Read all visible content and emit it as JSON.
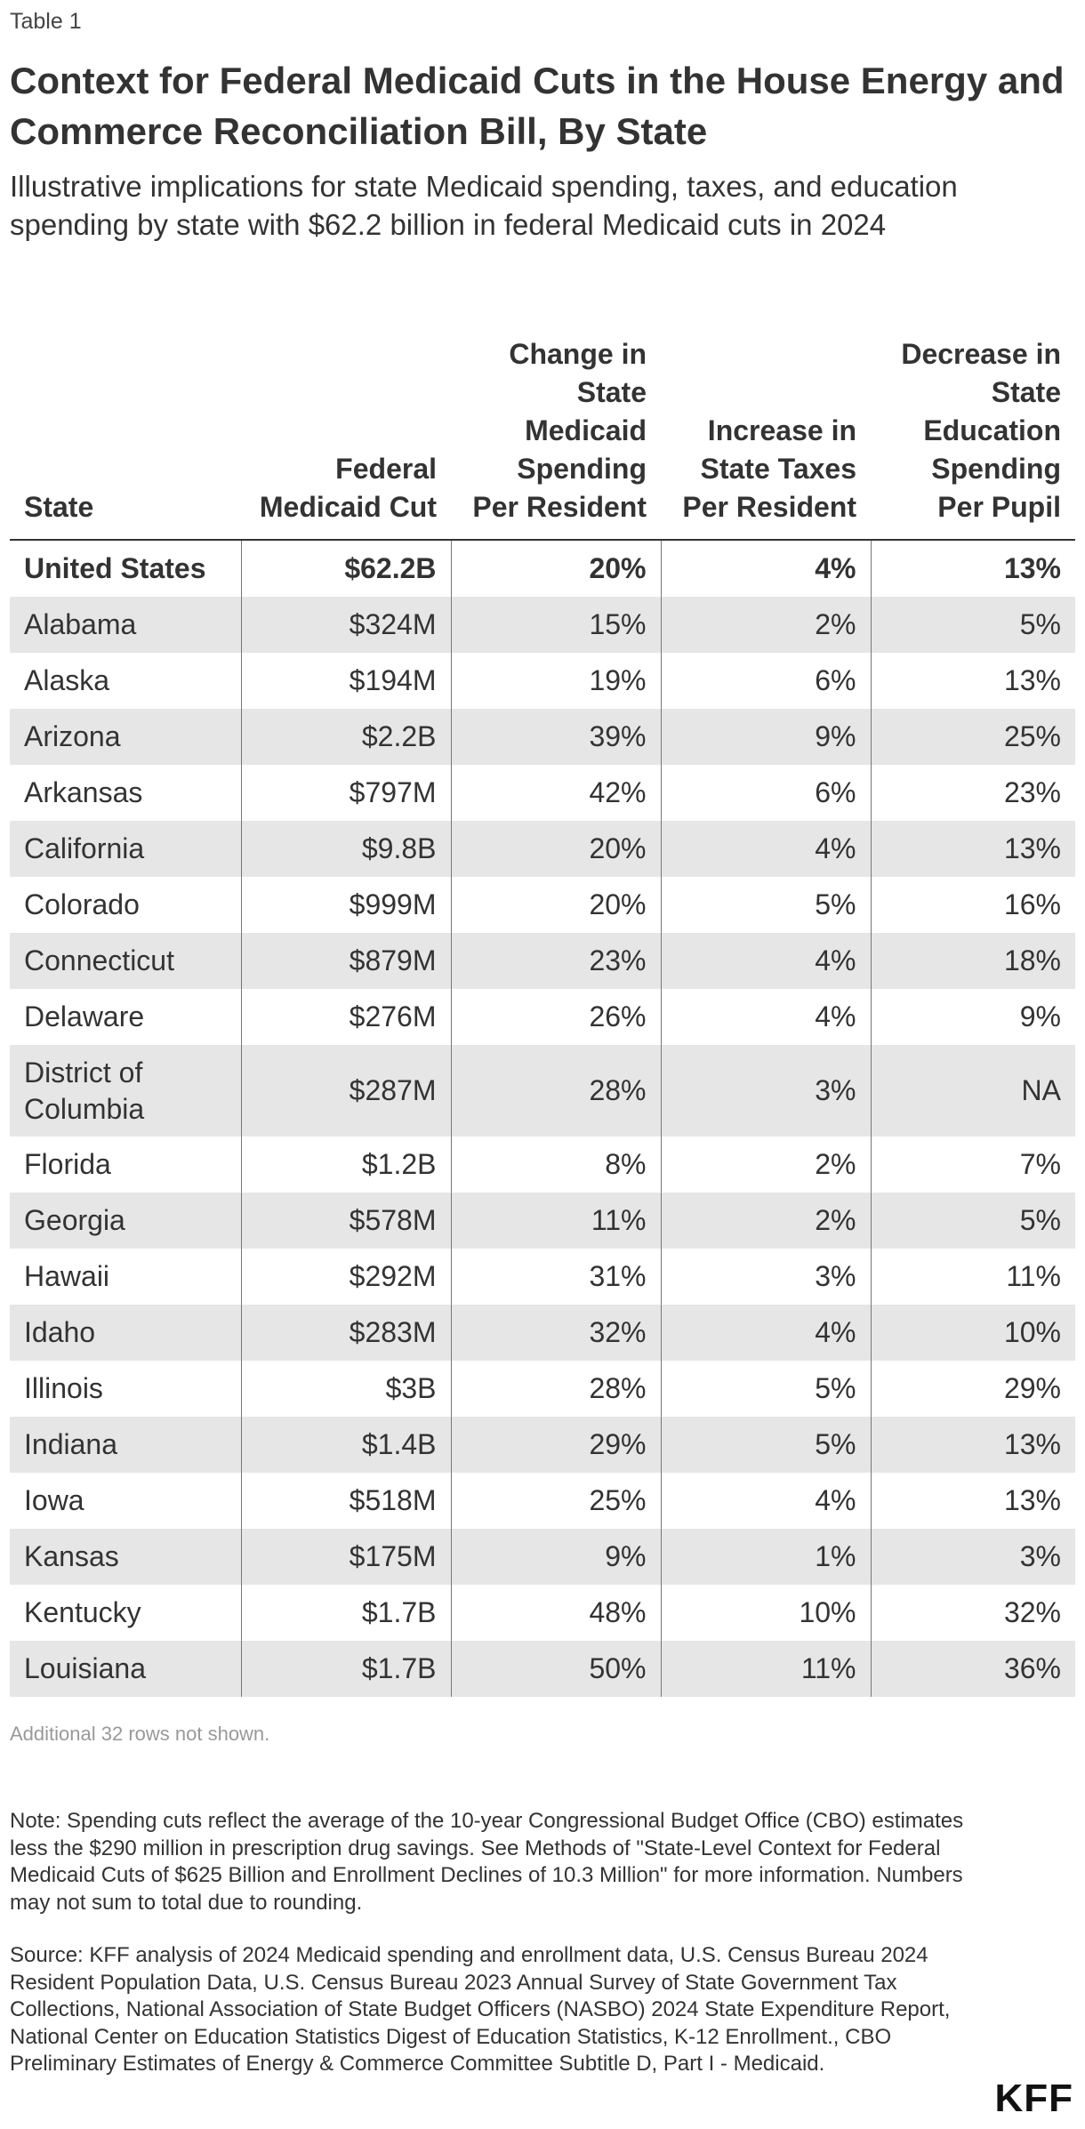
{
  "header": {
    "table_label": "Table 1",
    "title": "Context for Federal Medicaid Cuts in the House Energy and Commerce Reconciliation Bill, By State",
    "subtitle": "Illustrative implications for state Medicaid spending, taxes, and education spending by state with $62.2 billion in federal Medicaid cuts in 2024"
  },
  "table": {
    "columns": [
      "State",
      "Federal Medicaid Cut",
      "Change in State Medicaid Spending Per Resident",
      "Increase in State Taxes Per Resident",
      "Decrease in State Education Spending Per Pupil"
    ],
    "rows": [
      [
        "United States",
        "$62.2B",
        "20%",
        "4%",
        "13%"
      ],
      [
        "Alabama",
        "$324M",
        "15%",
        "2%",
        "5%"
      ],
      [
        "Alaska",
        "$194M",
        "19%",
        "6%",
        "13%"
      ],
      [
        "Arizona",
        "$2.2B",
        "39%",
        "9%",
        "25%"
      ],
      [
        "Arkansas",
        "$797M",
        "42%",
        "6%",
        "23%"
      ],
      [
        "California",
        "$9.8B",
        "20%",
        "4%",
        "13%"
      ],
      [
        "Colorado",
        "$999M",
        "20%",
        "5%",
        "16%"
      ],
      [
        "Connecticut",
        "$879M",
        "23%",
        "4%",
        "18%"
      ],
      [
        "Delaware",
        "$276M",
        "26%",
        "4%",
        "9%"
      ],
      [
        "District of Columbia",
        "$287M",
        "28%",
        "3%",
        "NA"
      ],
      [
        "Florida",
        "$1.2B",
        "8%",
        "2%",
        "7%"
      ],
      [
        "Georgia",
        "$578M",
        "11%",
        "2%",
        "5%"
      ],
      [
        "Hawaii",
        "$292M",
        "31%",
        "3%",
        "11%"
      ],
      [
        "Idaho",
        "$283M",
        "32%",
        "4%",
        "10%"
      ],
      [
        "Illinois",
        "$3B",
        "28%",
        "5%",
        "29%"
      ],
      [
        "Indiana",
        "$1.4B",
        "29%",
        "5%",
        "13%"
      ],
      [
        "Iowa",
        "$518M",
        "25%",
        "4%",
        "13%"
      ],
      [
        "Kansas",
        "$175M",
        "9%",
        "1%",
        "3%"
      ],
      [
        "Kentucky",
        "$1.7B",
        "48%",
        "10%",
        "32%"
      ],
      [
        "Louisiana",
        "$1.7B",
        "50%",
        "11%",
        "36%"
      ]
    ],
    "more_rows_text": "Additional 32 rows not shown."
  },
  "footer": {
    "note": "Note: Spending cuts reflect the average of the 10-year Congressional Budget Office (CBO) estimates less the $290 million in prescription drug savings. See Methods of \"State-Level Context for Federal Medicaid Cuts of $625 Billion and Enrollment Declines of 10.3 Million\" for more information. Numbers may not sum to total due to rounding.",
    "source": "Source: KFF analysis of 2024 Medicaid spending and enrollment data, U.S. Census Bureau 2024 Resident Population Data, U.S. Census Bureau 2023 Annual Survey of State Government Tax Collections, National Association of State Budget Officers (NASBO) 2024 State Expenditure Report, National Center on Education Statistics Digest of Education Statistics, K-12 Enrollment., CBO Preliminary Estimates of Energy & Commerce Committee Subtitle D, Part I - Medicaid.",
    "logo_text": "KFF"
  }
}
